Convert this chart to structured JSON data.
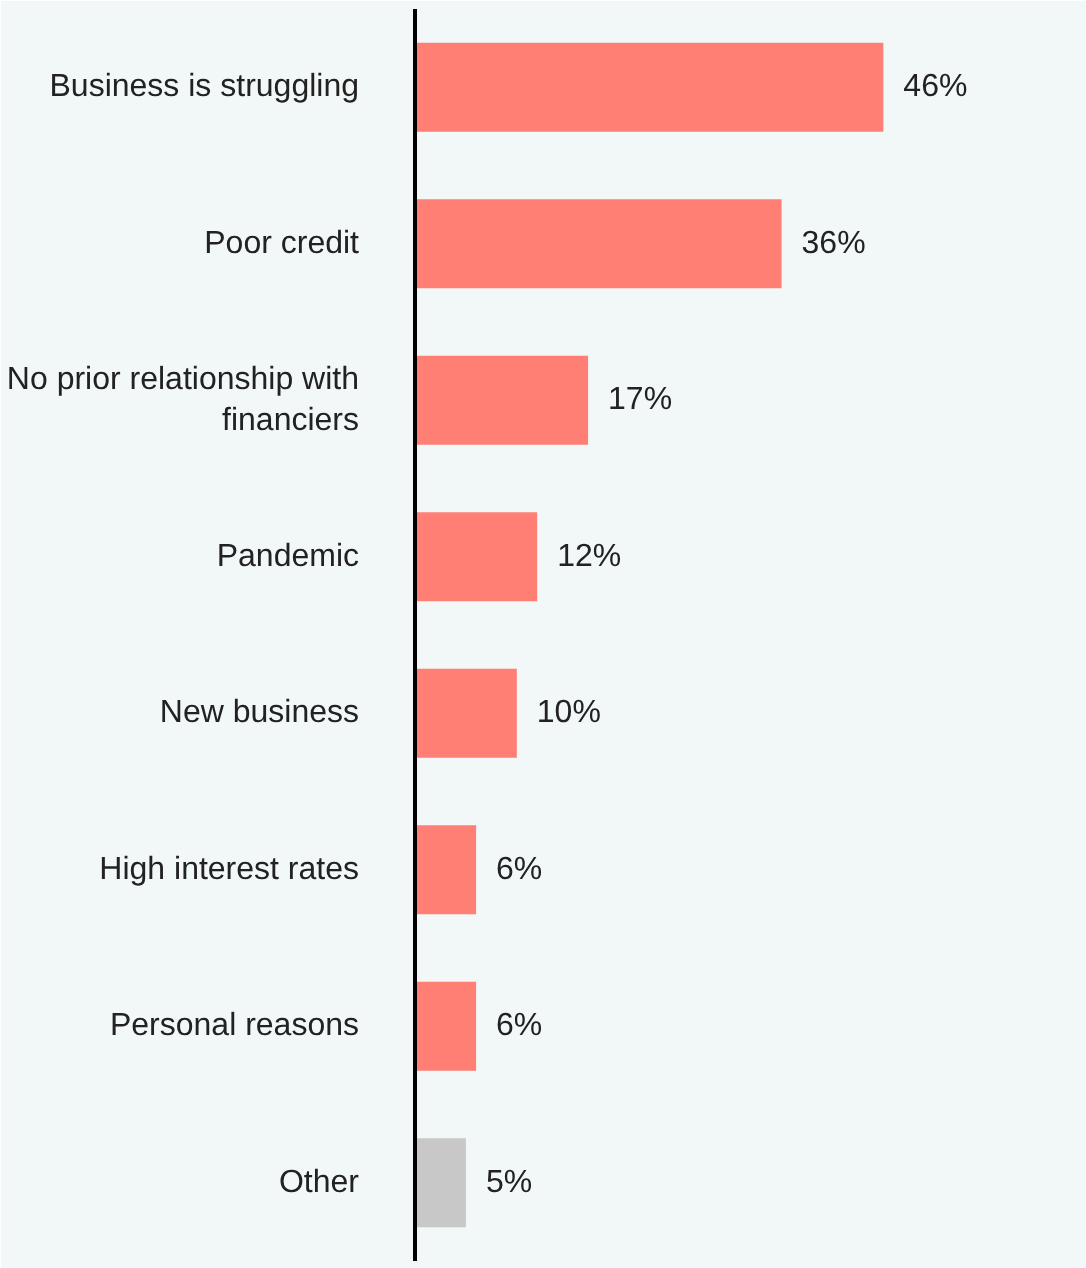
{
  "chart_data": {
    "type": "bar",
    "orientation": "horizontal",
    "categories": [
      "Business is struggling",
      "Poor credit",
      "No prior relationship with financiers",
      "Pandemic",
      "New business",
      "High interest rates",
      "Personal reasons",
      "Other"
    ],
    "values": [
      46,
      36,
      17,
      12,
      10,
      6,
      6,
      5
    ],
    "colors": [
      "#ff7f74",
      "#ff7f74",
      "#ff7f74",
      "#ff7f74",
      "#ff7f74",
      "#ff7f74",
      "#ff7f74",
      "#c8c8c8"
    ],
    "value_labels": [
      "46%",
      "36%",
      "17%",
      "12%",
      "10%",
      "6%",
      "6%",
      "5%"
    ],
    "xlim": [
      0,
      66
    ],
    "tick_labels": "y",
    "grid": false
  }
}
